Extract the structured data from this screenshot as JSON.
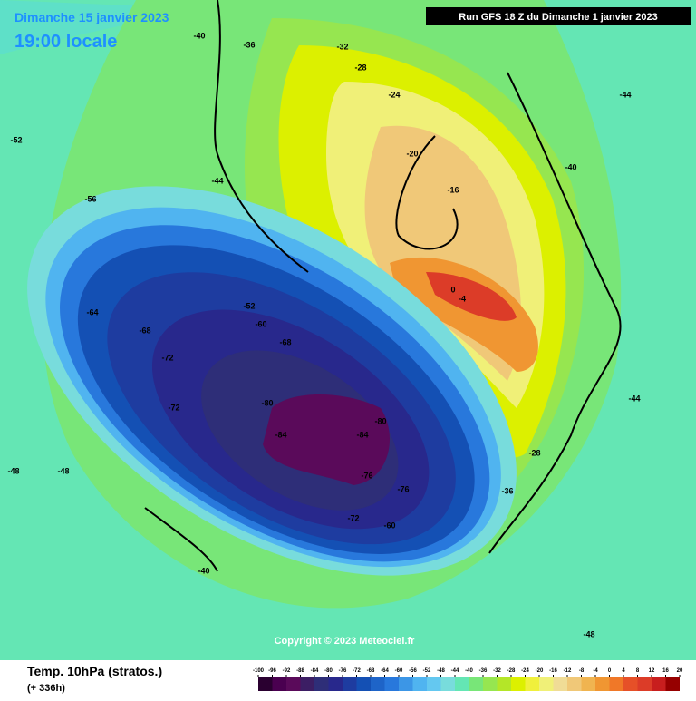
{
  "header": {
    "date": "Dimanche 15 janvier 2023",
    "time": "19:00 locale",
    "run": "Run GFS 18 Z du Dimanche 1 janvier 2023"
  },
  "copyright": "Copyright © 2023 Meteociel.fr",
  "legend": {
    "title": "Temp. 10hPa (stratos.)",
    "lead": "(+ 336h)",
    "ticks": [
      -100,
      -96,
      -92,
      -88,
      -84,
      -80,
      -76,
      -72,
      -68,
      -64,
      -60,
      -56,
      -52,
      -48,
      -44,
      -40,
      -36,
      -32,
      -28,
      -24,
      -20,
      -16,
      -12,
      -8,
      -4,
      0,
      4,
      8,
      12,
      16,
      20
    ],
    "colors": [
      "#2a0030",
      "#4a0050",
      "#5a0a5a",
      "#3c1e64",
      "#2e2e78",
      "#28288c",
      "#1e3ca0",
      "#1450b4",
      "#1e64c8",
      "#2878dc",
      "#3c96e6",
      "#50b4f0",
      "#64c8f0",
      "#78dcdc",
      "#64e6b4",
      "#78e678",
      "#96e650",
      "#b4e628",
      "#dcf000",
      "#f0f03c",
      "#f0f078",
      "#f0dc96",
      "#f0c878",
      "#f0b450",
      "#f09632",
      "#f07828",
      "#e65028",
      "#dc3c28",
      "#c81e1e",
      "#960000"
    ]
  },
  "contour_labels": [
    -80,
    -84,
    -80,
    -84,
    -76,
    -72,
    -72,
    -68,
    -64,
    -60,
    -56,
    -52,
    -48,
    -44,
    -40,
    -36,
    -32,
    -28,
    -24,
    -20,
    -16,
    0,
    -4,
    -28,
    -40,
    -44,
    -48,
    -72,
    -60,
    -76,
    -68,
    -52,
    -40,
    -36,
    -44,
    -48
  ]
}
